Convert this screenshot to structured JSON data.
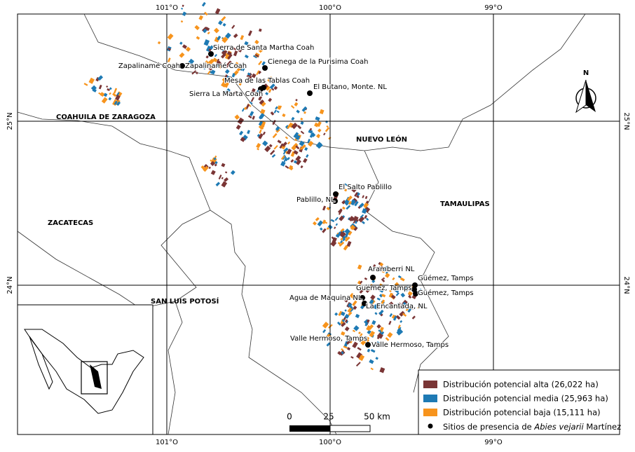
{
  "grid": {
    "lon": [
      "101°O",
      "100°O",
      "99°O"
    ],
    "lat": [
      "25°N",
      "24°N"
    ]
  },
  "states": [
    "COAHUILA DE ZARAGOZA",
    "NUEVO LEÓN",
    "TAMAULIPAS",
    "ZACATECAS",
    "SAN LUIS POTOSÍ"
  ],
  "sites": [
    "Sierra de Santa Martha Coah",
    "Zapalinamé Coah",
    "Zapalinamé Coah",
    "Cienega de la Purisima Coah",
    "Mesa de las Tablas Coah",
    "Sierra La Marta Coah",
    "El Butano, Monte. NL",
    "El Salto Pablillo",
    "Pablillo, NL",
    "Aramberri NL",
    "Güémez, Tamps",
    "Güémez, Tamps",
    "Güémez, Tamps",
    "Agua de Maquina NL",
    "La Encantada, NL",
    "Valle Hermoso, Tamps",
    "Valle Hermoso, Tamps"
  ],
  "north": "N",
  "scale": [
    "0",
    "25",
    "50 km"
  ],
  "legend": {
    "items": [
      "Distribución potencial alta (26,022 ha)",
      "Distribución potencial media (25,963 ha)",
      "Distribución potencial baja (15,111 ha)"
    ],
    "sites": [
      "Sitios de presencia de ",
      "Abies vejarii",
      " Martínez"
    ]
  }
}
